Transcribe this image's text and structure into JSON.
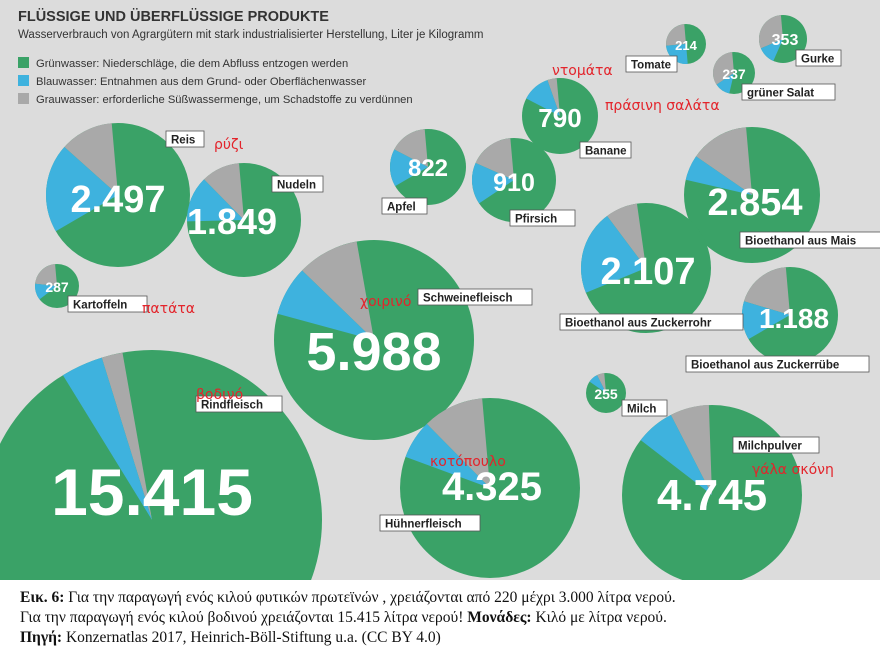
{
  "colors": {
    "green": "#3aa267",
    "blue": "#3eb2de",
    "grey": "#a9a9a9",
    "background": "#dcdcdc",
    "label_text": "#222222",
    "greek_text": "#e3242b"
  },
  "chart_data": {
    "type": "bubble-pie",
    "title": "FLÜSSIGE UND ÜBERFLÜSSIGE PRODUKTE",
    "subtitle": "Wasserverbrauch von Agrargütern mit stark industrialisierter Herstellung, Liter je Kilogramm",
    "legend": [
      {
        "label": "Grünwasser: Niederschläge, die dem Abfluss entzogen werden",
        "color": "#3aa267"
      },
      {
        "label": "Blauwasser: Entnahmen aus dem Grund- oder Oberflächenwasser",
        "color": "#3eb2de"
      },
      {
        "label": "Grauwasser: erforderliche Süßwassermenge, um Schadstoffe zu verdünnen",
        "color": "#a9a9a9"
      }
    ],
    "legend_position": "top-left",
    "products": [
      {
        "name": "Rindfleisch",
        "greek": "βοδινό",
        "value": "15.415",
        "shares": {
          "green": 0.94,
          "blue": 0.04,
          "grey": 0.02
        }
      },
      {
        "name": "Schweinefleisch",
        "greek": "χοιρινό",
        "value": "5.988",
        "shares": {
          "green": 0.82,
          "blue": 0.08,
          "grey": 0.1
        }
      },
      {
        "name": "Milchpulver",
        "greek": "γάλα σκόνη",
        "value": "4.745",
        "shares": {
          "green": 0.86,
          "blue": 0.07,
          "grey": 0.07
        }
      },
      {
        "name": "Hühnerfleisch",
        "greek": "κοτόπουλο",
        "value": "4.325",
        "shares": {
          "green": 0.82,
          "blue": 0.07,
          "grey": 0.11
        }
      },
      {
        "name": "Bioethanol aus Mais",
        "value": "2.854",
        "shares": {
          "green": 0.8,
          "blue": 0.06,
          "grey": 0.14
        }
      },
      {
        "name": "Reis",
        "greek": "ρύζι",
        "value": "2.497",
        "shares": {
          "green": 0.68,
          "blue": 0.2,
          "grey": 0.12
        }
      },
      {
        "name": "Bioethanol aus Zuckerrohr",
        "value": "2.107",
        "shares": {
          "green": 0.71,
          "blue": 0.21,
          "grey": 0.08
        }
      },
      {
        "name": "Nudeln",
        "value": "1.849",
        "shares": {
          "green": 0.76,
          "blue": 0.13,
          "grey": 0.11
        }
      },
      {
        "name": "Bioethanol aus Zuckerrübe",
        "value": "1.188",
        "shares": {
          "green": 0.68,
          "blue": 0.13,
          "grey": 0.19
        }
      },
      {
        "name": "Pfirsich",
        "value": "910",
        "shares": {
          "green": 0.67,
          "blue": 0.16,
          "grey": 0.17
        }
      },
      {
        "name": "Apfel",
        "value": "822",
        "shares": {
          "green": 0.68,
          "blue": 0.16,
          "grey": 0.16
        }
      },
      {
        "name": "Banane",
        "value": "790",
        "shares": {
          "green": 0.84,
          "blue": 0.12,
          "grey": 0.04
        }
      },
      {
        "name": "Gurke",
        "value": "353",
        "shares": {
          "green": 0.58,
          "blue": 0.12,
          "grey": 0.3
        }
      },
      {
        "name": "Kartoffeln",
        "greek": "πατάτα",
        "value": "287",
        "shares": {
          "green": 0.66,
          "blue": 0.12,
          "grey": 0.22
        }
      },
      {
        "name": "Milch",
        "value": "255",
        "shares": {
          "green": 0.86,
          "blue": 0.08,
          "grey": 0.06
        }
      },
      {
        "name": "grüner Salat",
        "greek": "πράσινη σαλάτα",
        "value": "237",
        "shares": {
          "green": 0.55,
          "blue": 0.12,
          "grey": 0.33
        }
      },
      {
        "name": "Tomate",
        "greek": "ντομάτα",
        "value": "214",
        "shares": {
          "green": 0.5,
          "blue": 0.25,
          "grey": 0.25
        }
      }
    ]
  },
  "caption": {
    "fig_label": "Εικ. 6:",
    "line1": "Για την παραγωγή ενός κιλού φυτικών πρωτεϊνών , χρειάζονται από 220 μέχρι 3.000 λίτρα νερού.",
    "line2_text": "Για την παραγωγή ενός κιλού βοδινού χρειάζονται 15.415 λίτρα νερού!",
    "units_label": "Μονάδες:",
    "units_text": "Κιλό με λίτρα νερού.",
    "source_label": "Πηγή:",
    "source_text": "Konzernatlas 2017, Heinrich-Böll-Stiftung u.a. (CC BY 4.0)"
  }
}
